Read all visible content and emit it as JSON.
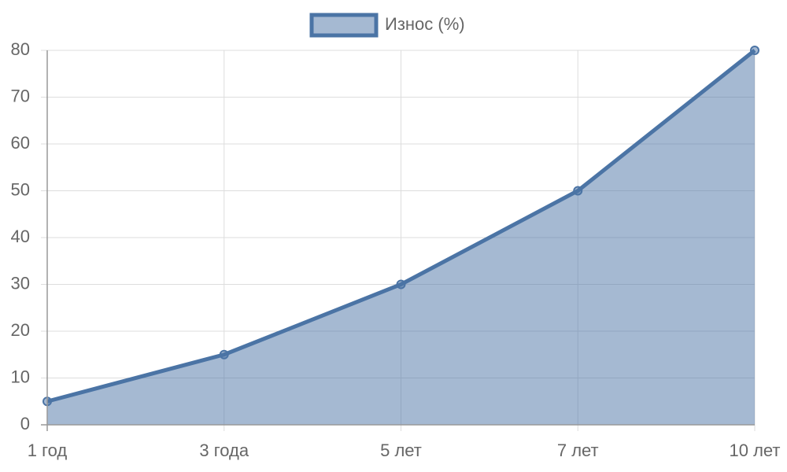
{
  "chart_data": {
    "type": "line",
    "categories": [
      "1 год",
      "3 года",
      "5 лет",
      "7 лет",
      "10 лет"
    ],
    "series": [
      {
        "name": "Износ (%)",
        "color": "#4b74a5",
        "values": [
          5,
          15,
          30,
          50,
          80
        ]
      }
    ],
    "ylim": [
      0,
      80
    ],
    "yticks": [
      0,
      10,
      20,
      30,
      40,
      50,
      60,
      70,
      80
    ],
    "grid": true,
    "fill": true,
    "legend": "top"
  }
}
